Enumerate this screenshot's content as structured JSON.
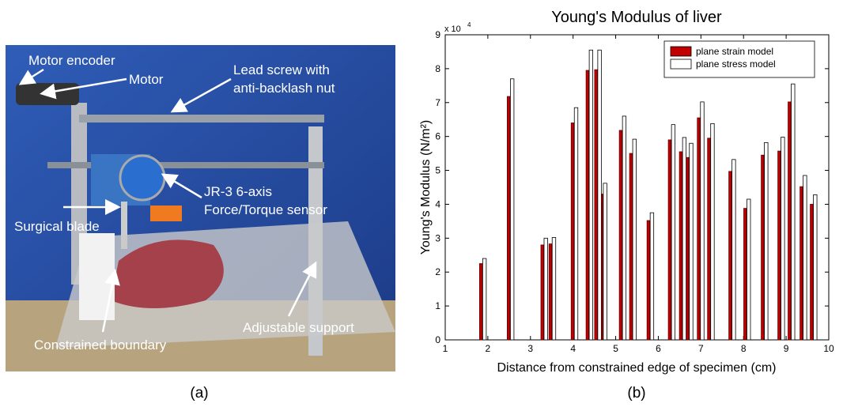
{
  "panel_a": {
    "caption": "(a)",
    "labels": [
      [
        "Motor encoder"
      ],
      [
        "Motor"
      ],
      [
        "Lead screw with",
        "anti-backlash nut"
      ],
      [
        "JR-3 6-axis",
        "Force/Torque sensor"
      ],
      [
        "Surgical blade"
      ],
      [
        "Constrained boundary"
      ],
      [
        "Adjustable support"
      ]
    ]
  },
  "chart_data": {
    "type": "bar",
    "caption": "(b)",
    "title": "Young's Modulus of liver",
    "x_label": "Distance from constrained edge of specimen (cm)",
    "y_label": "Young's Modulus (N/m²)",
    "y_multiplier": {
      "base": "x 10",
      "exponent": "4"
    },
    "x": [
      1.87,
      2.52,
      3.31,
      3.5,
      4.02,
      4.37,
      4.57,
      4.7,
      5.15,
      5.39,
      5.8,
      6.3,
      6.56,
      6.72,
      6.98,
      7.22,
      7.72,
      8.07,
      8.48,
      8.87,
      9.11,
      9.39,
      9.63
    ],
    "series": [
      {
        "name": "plane strain model",
        "color": "#c00000",
        "values": [
          2.25,
          7.18,
          2.8,
          2.83,
          6.4,
          7.95,
          7.97,
          4.3,
          6.18,
          5.5,
          3.52,
          5.9,
          5.55,
          5.38,
          6.55,
          5.95,
          4.97,
          3.88,
          5.45,
          5.57,
          7.02,
          4.52,
          4.0
        ]
      },
      {
        "name": "plane stress model",
        "color": "#ffffff",
        "values": [
          2.4,
          7.7,
          3.0,
          3.02,
          6.85,
          8.55,
          8.55,
          4.62,
          6.6,
          5.92,
          3.75,
          6.35,
          5.97,
          5.8,
          7.02,
          6.38,
          5.32,
          4.15,
          5.82,
          5.98,
          7.55,
          4.85,
          4.28
        ]
      }
    ],
    "xlim": [
      1,
      10
    ],
    "xticks": [
      1,
      2,
      3,
      4,
      5,
      6,
      7,
      8,
      9,
      10
    ],
    "ylim": [
      0,
      9
    ],
    "yticks": [
      0,
      1,
      2,
      3,
      4,
      5,
      6,
      7,
      8,
      9
    ],
    "legend": "upper right",
    "grid": false
  }
}
